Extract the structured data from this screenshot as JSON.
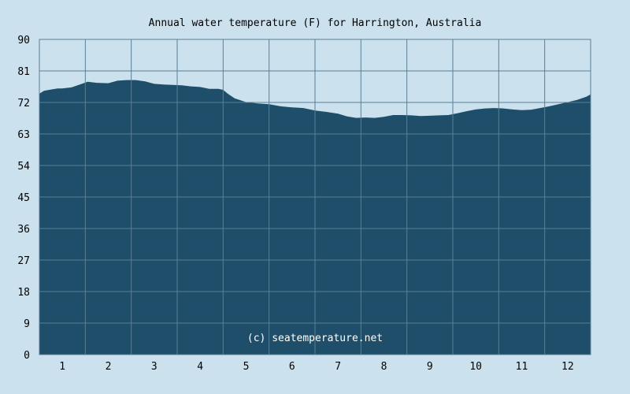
{
  "chart_data": {
    "type": "area",
    "title": "Annual water temperature (F) for Harrington, Australia",
    "xlabel": "",
    "ylabel": "",
    "ylim": [
      0,
      90
    ],
    "xlim": [
      0.5,
      12.5
    ],
    "y_ticks": [
      0,
      9,
      18,
      27,
      36,
      45,
      54,
      63,
      72,
      81,
      90
    ],
    "x_ticks": [
      1,
      2,
      3,
      4,
      5,
      6,
      7,
      8,
      9,
      10,
      11,
      12
    ],
    "grid": true,
    "watermark": "(c) seatemperature.net",
    "colors": {
      "background": "#cbe1ee",
      "plot_background": "#cbe1ee",
      "area_fill": "#1f4e6a",
      "grid": "#5a7f95"
    },
    "series": [
      {
        "x": [
          0.5,
          0.6,
          0.75,
          0.9,
          1.0,
          1.2,
          1.4,
          1.55,
          1.75,
          2.0,
          2.2,
          2.4,
          2.6,
          2.8,
          3.0,
          3.2,
          3.4,
          3.6,
          3.8,
          4.0,
          4.2,
          4.4,
          4.5,
          4.6,
          4.75,
          5.0,
          5.25,
          5.5,
          5.75,
          6.0,
          6.25,
          6.5,
          6.75,
          7.0,
          7.2,
          7.4,
          7.6,
          7.8,
          8.0,
          8.2,
          8.4,
          8.6,
          8.8,
          9.0,
          9.2,
          9.4,
          9.6,
          9.8,
          10.0,
          10.2,
          10.4,
          10.6,
          10.8,
          11.0,
          11.2,
          11.4,
          11.6,
          11.8,
          12.0,
          12.2,
          12.4,
          12.5
        ],
        "values": [
          74.5,
          75.3,
          75.7,
          76.0,
          76.0,
          76.3,
          77.2,
          77.9,
          77.6,
          77.5,
          78.2,
          78.4,
          78.4,
          78.0,
          77.3,
          77.1,
          77.0,
          76.9,
          76.6,
          76.4,
          75.9,
          75.9,
          75.6,
          74.5,
          73.2,
          72.1,
          71.7,
          71.5,
          70.9,
          70.6,
          70.4,
          69.7,
          69.3,
          68.8,
          68.0,
          67.6,
          67.7,
          67.6,
          67.9,
          68.4,
          68.4,
          68.3,
          68.1,
          68.2,
          68.3,
          68.4,
          68.9,
          69.5,
          70.0,
          70.3,
          70.4,
          70.3,
          70.0,
          69.8,
          69.9,
          70.4,
          70.9,
          71.5,
          72.1,
          72.7,
          73.6,
          74.3
        ]
      }
    ]
  }
}
